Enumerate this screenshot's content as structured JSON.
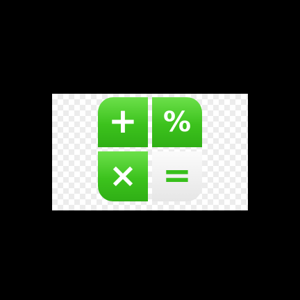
{
  "icon": {
    "name": "calculator-app-icon",
    "colors": {
      "green": "#3cc21d",
      "gray": "#e9e9e9",
      "symbol_white": "#ffffff",
      "symbol_green": "#38c01c"
    },
    "tiles": [
      {
        "symbol": "+",
        "icon": "plus-icon"
      },
      {
        "symbol": "%",
        "icon": "percent-icon"
      },
      {
        "symbol": "×",
        "icon": "multiply-icon"
      },
      {
        "symbol": "=",
        "icon": "equals-icon"
      }
    ]
  }
}
